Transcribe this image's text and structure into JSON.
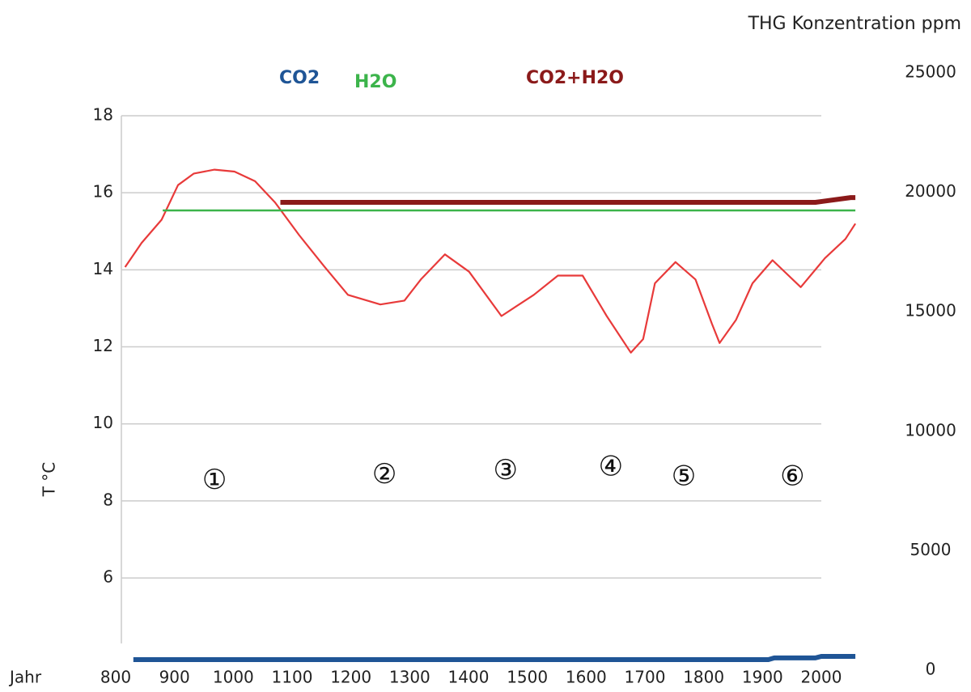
{
  "chart_data": {
    "type": "line",
    "y2_label": "THG Konzentration ppm",
    "y_label": "T °C",
    "x_label": "Jahr",
    "xlim": [
      800,
      2060
    ],
    "xticks": [
      800,
      900,
      1000,
      1100,
      1200,
      1300,
      1400,
      1500,
      1600,
      1700,
      1800,
      1900,
      2000
    ],
    "ylim": [
      4.3,
      18
    ],
    "yticks": [
      6,
      8,
      10,
      12,
      14,
      16,
      18
    ],
    "y2lim": [
      0,
      25000
    ],
    "y2ticks": [
      0,
      5000,
      10000,
      15000,
      20000,
      25000
    ],
    "grid": true,
    "series": [
      {
        "color": "#e83a3a",
        "axis": "y",
        "x": [
          816,
          844,
          878,
          906,
          933,
          968,
          1002,
          1037,
          1071,
          1112,
          1154,
          1195,
          1250,
          1291,
          1319,
          1360,
          1401,
          1456,
          1511,
          1552,
          1594,
          1635,
          1676,
          1697,
          1717,
          1752,
          1786,
          1814,
          1827,
          1855,
          1883,
          1917,
          1965,
          2006,
          2041,
          2058
        ],
        "values": [
          14.07,
          14.7,
          15.3,
          16.2,
          16.5,
          16.6,
          16.55,
          16.3,
          15.75,
          14.9,
          14.1,
          13.35,
          13.1,
          13.2,
          13.75,
          14.4,
          13.95,
          12.8,
          13.35,
          13.85,
          13.85,
          12.8,
          11.85,
          12.2,
          13.65,
          14.2,
          13.75,
          12.6,
          12.1,
          12.7,
          13.65,
          14.25,
          13.55,
          14.3,
          14.8,
          15.2
        ]
      },
      {
        "name": "CO2",
        "color": "#1f5596",
        "axis": "y2",
        "x": [
          830,
          1910,
          1920,
          1990,
          2000,
          2058
        ],
        "values": [
          440,
          440,
          510,
          510,
          575,
          575
        ]
      },
      {
        "name": "H2O",
        "color": "#3cb44b",
        "axis": "y2",
        "x": [
          880,
          2058
        ],
        "values": [
          19240,
          19240
        ]
      },
      {
        "name": "CO2+H2O",
        "color": "#8b1a1a",
        "axis": "y2",
        "x": [
          1080,
          1990,
          2050,
          2058
        ],
        "values": [
          19580,
          19580,
          19780,
          19780
        ]
      }
    ],
    "annotations": [
      {
        "text": "①",
        "x": 968,
        "y": 8.5
      },
      {
        "text": "②",
        "x": 1257,
        "y": 8.65
      },
      {
        "text": "③",
        "x": 1463,
        "y": 8.75
      },
      {
        "text": "④",
        "x": 1642,
        "y": 8.85
      },
      {
        "text": "⑤",
        "x": 1766,
        "y": 8.6
      },
      {
        "text": "⑥",
        "x": 1951,
        "y": 8.6
      }
    ]
  }
}
